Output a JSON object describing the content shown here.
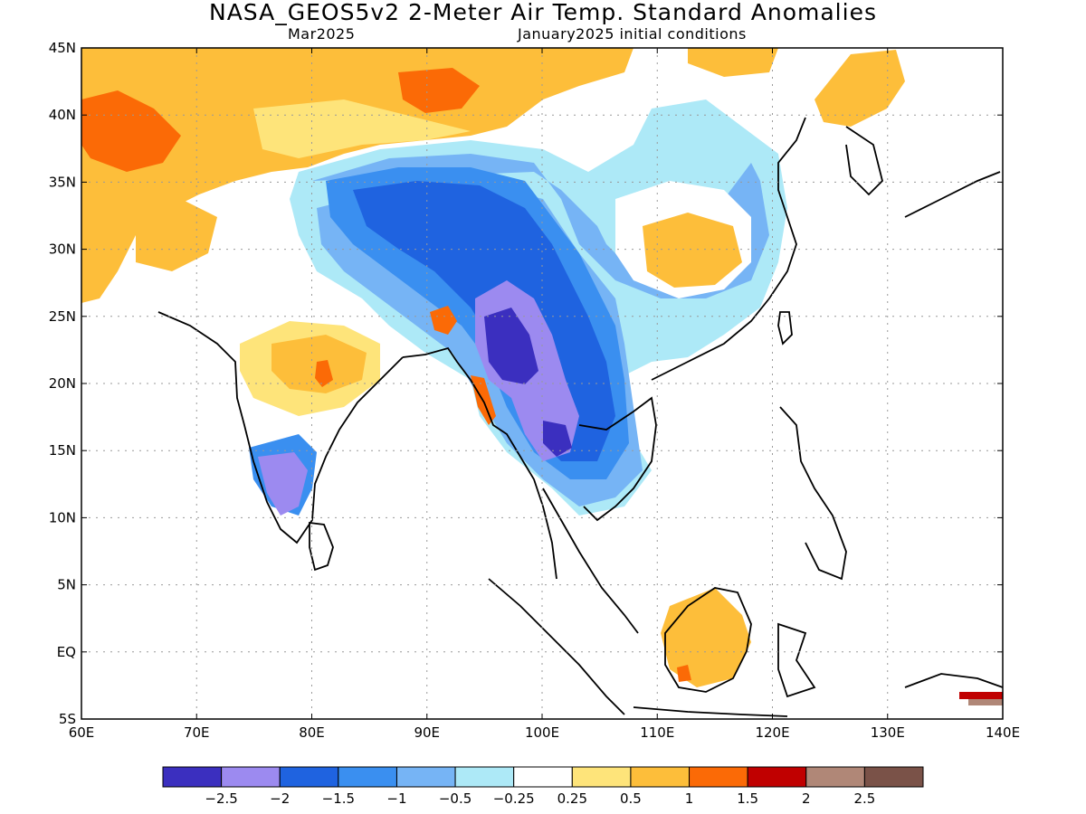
{
  "header": {
    "title": "NASA_GEOS5v2 2-Meter Air Temp. Standard Anomalies",
    "forecast_month": "Mar2025",
    "init_conditions": "January2025 initial conditions"
  },
  "axes": {
    "lat_ticks": [
      "45N",
      "40N",
      "35N",
      "30N",
      "25N",
      "20N",
      "15N",
      "10N",
      "5N",
      "EQ",
      "5S"
    ],
    "lon_ticks": [
      "60E",
      "70E",
      "80E",
      "90E",
      "100E",
      "110E",
      "120E",
      "130E",
      "140E"
    ]
  },
  "colorbar": {
    "colors": [
      "#3b2fbf",
      "#9c8af0",
      "#1f63e0",
      "#3a8ff0",
      "#76b4f5",
      "#ade9f7",
      "#ffffff",
      "#fee47a",
      "#fdbe3a",
      "#fb6a06",
      "#c00000",
      "#b08777",
      "#7a5248"
    ],
    "labels": [
      "−2.5",
      "−2",
      "−1.5",
      "−1",
      "−0.5",
      "−0.25",
      "0.25",
      "0.5",
      "1",
      "1.5",
      "2",
      "2.5"
    ]
  }
}
